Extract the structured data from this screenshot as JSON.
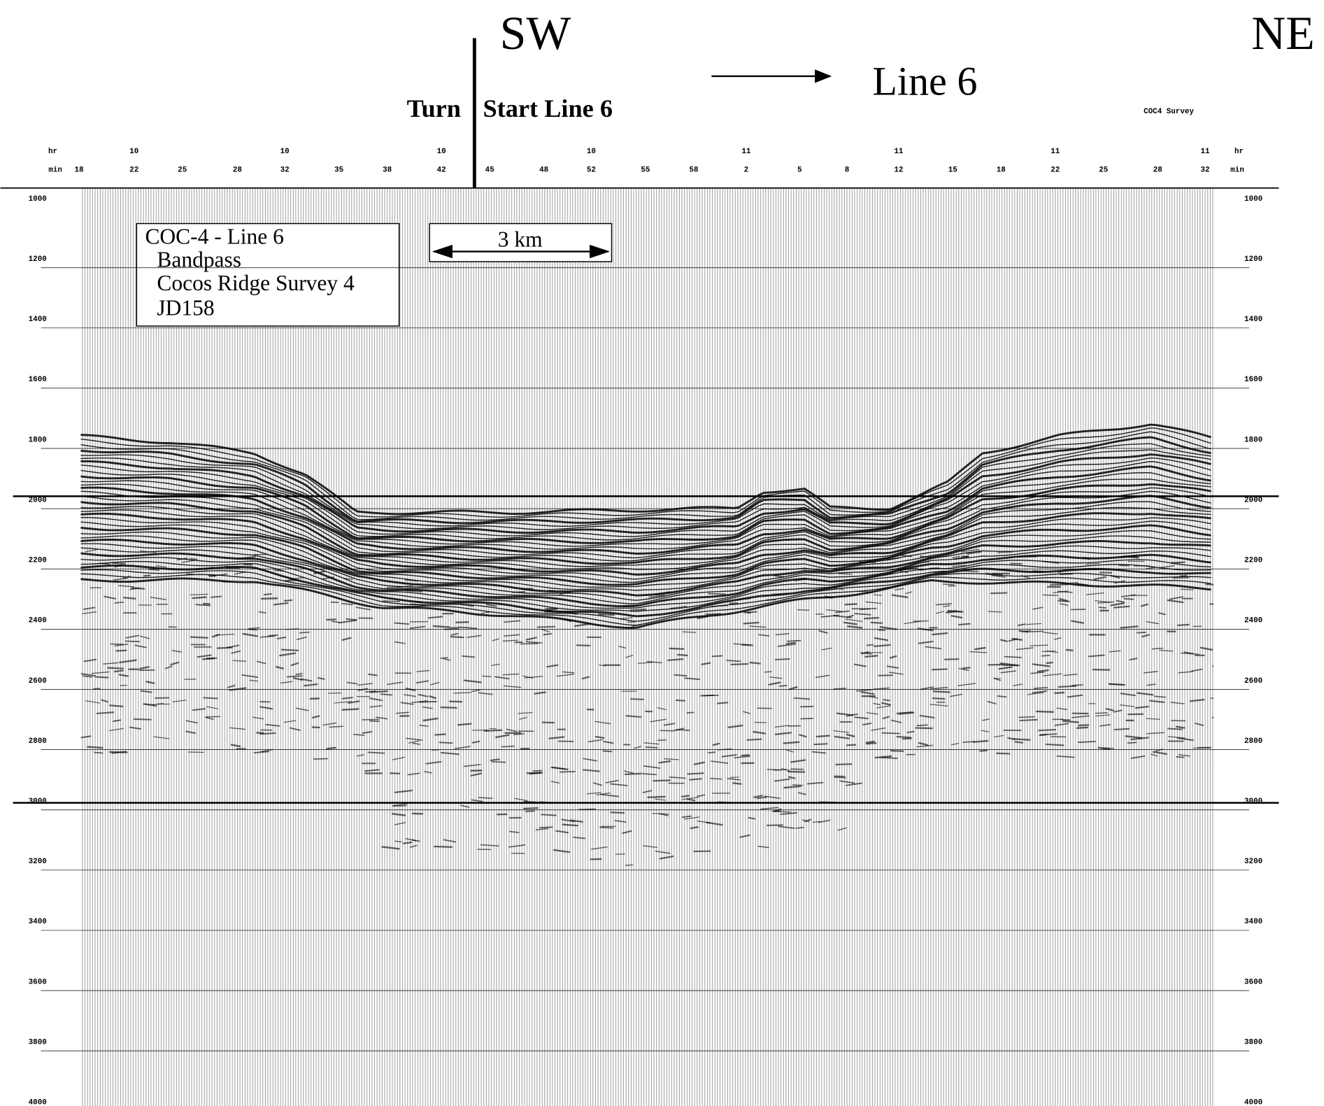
{
  "header": {
    "direction_left": "SW",
    "direction_right": "NE",
    "line_label": "Line 6",
    "turn": "Turn",
    "start": "Start Line 6",
    "survey": "COC4 Survey"
  },
  "time_axis": {
    "hr_label": "hr",
    "min_label": "min",
    "hours": [
      "10",
      "10",
      "10",
      "10",
      "11",
      "11",
      "11",
      "11"
    ],
    "minutes": [
      "18",
      "22",
      "25",
      "28",
      "32",
      "35",
      "38",
      "42",
      "45",
      "48",
      "52",
      "55",
      "58",
      "2",
      "5",
      "8",
      "12",
      "15",
      "18",
      "22",
      "25",
      "28",
      "32"
    ]
  },
  "depth_axis": {
    "labels": [
      "1000",
      "1200",
      "1400",
      "1600",
      "1800",
      "2000",
      "2200",
      "2400",
      "2600",
      "2800",
      "3000",
      "3200",
      "3400",
      "3600",
      "3800",
      "4000"
    ]
  },
  "info_box": {
    "lines": [
      "COC-4 - Line 6",
      "Bandpass",
      "Cocos Ridge Survey 4",
      "JD158"
    ]
  },
  "scale_bar": {
    "label": "3 km"
  }
}
